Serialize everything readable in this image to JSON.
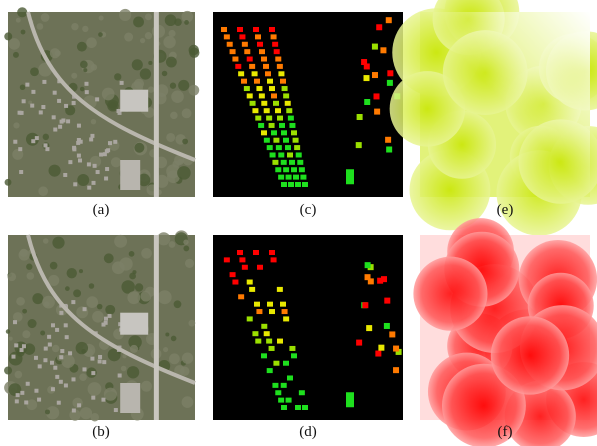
{
  "panels": [
    {
      "label": "(a)"
    },
    {
      "label": "(c)"
    },
    {
      "label": "(e)"
    },
    {
      "label": "(b)"
    },
    {
      "label": "(d)"
    },
    {
      "label": "(f)"
    }
  ]
}
